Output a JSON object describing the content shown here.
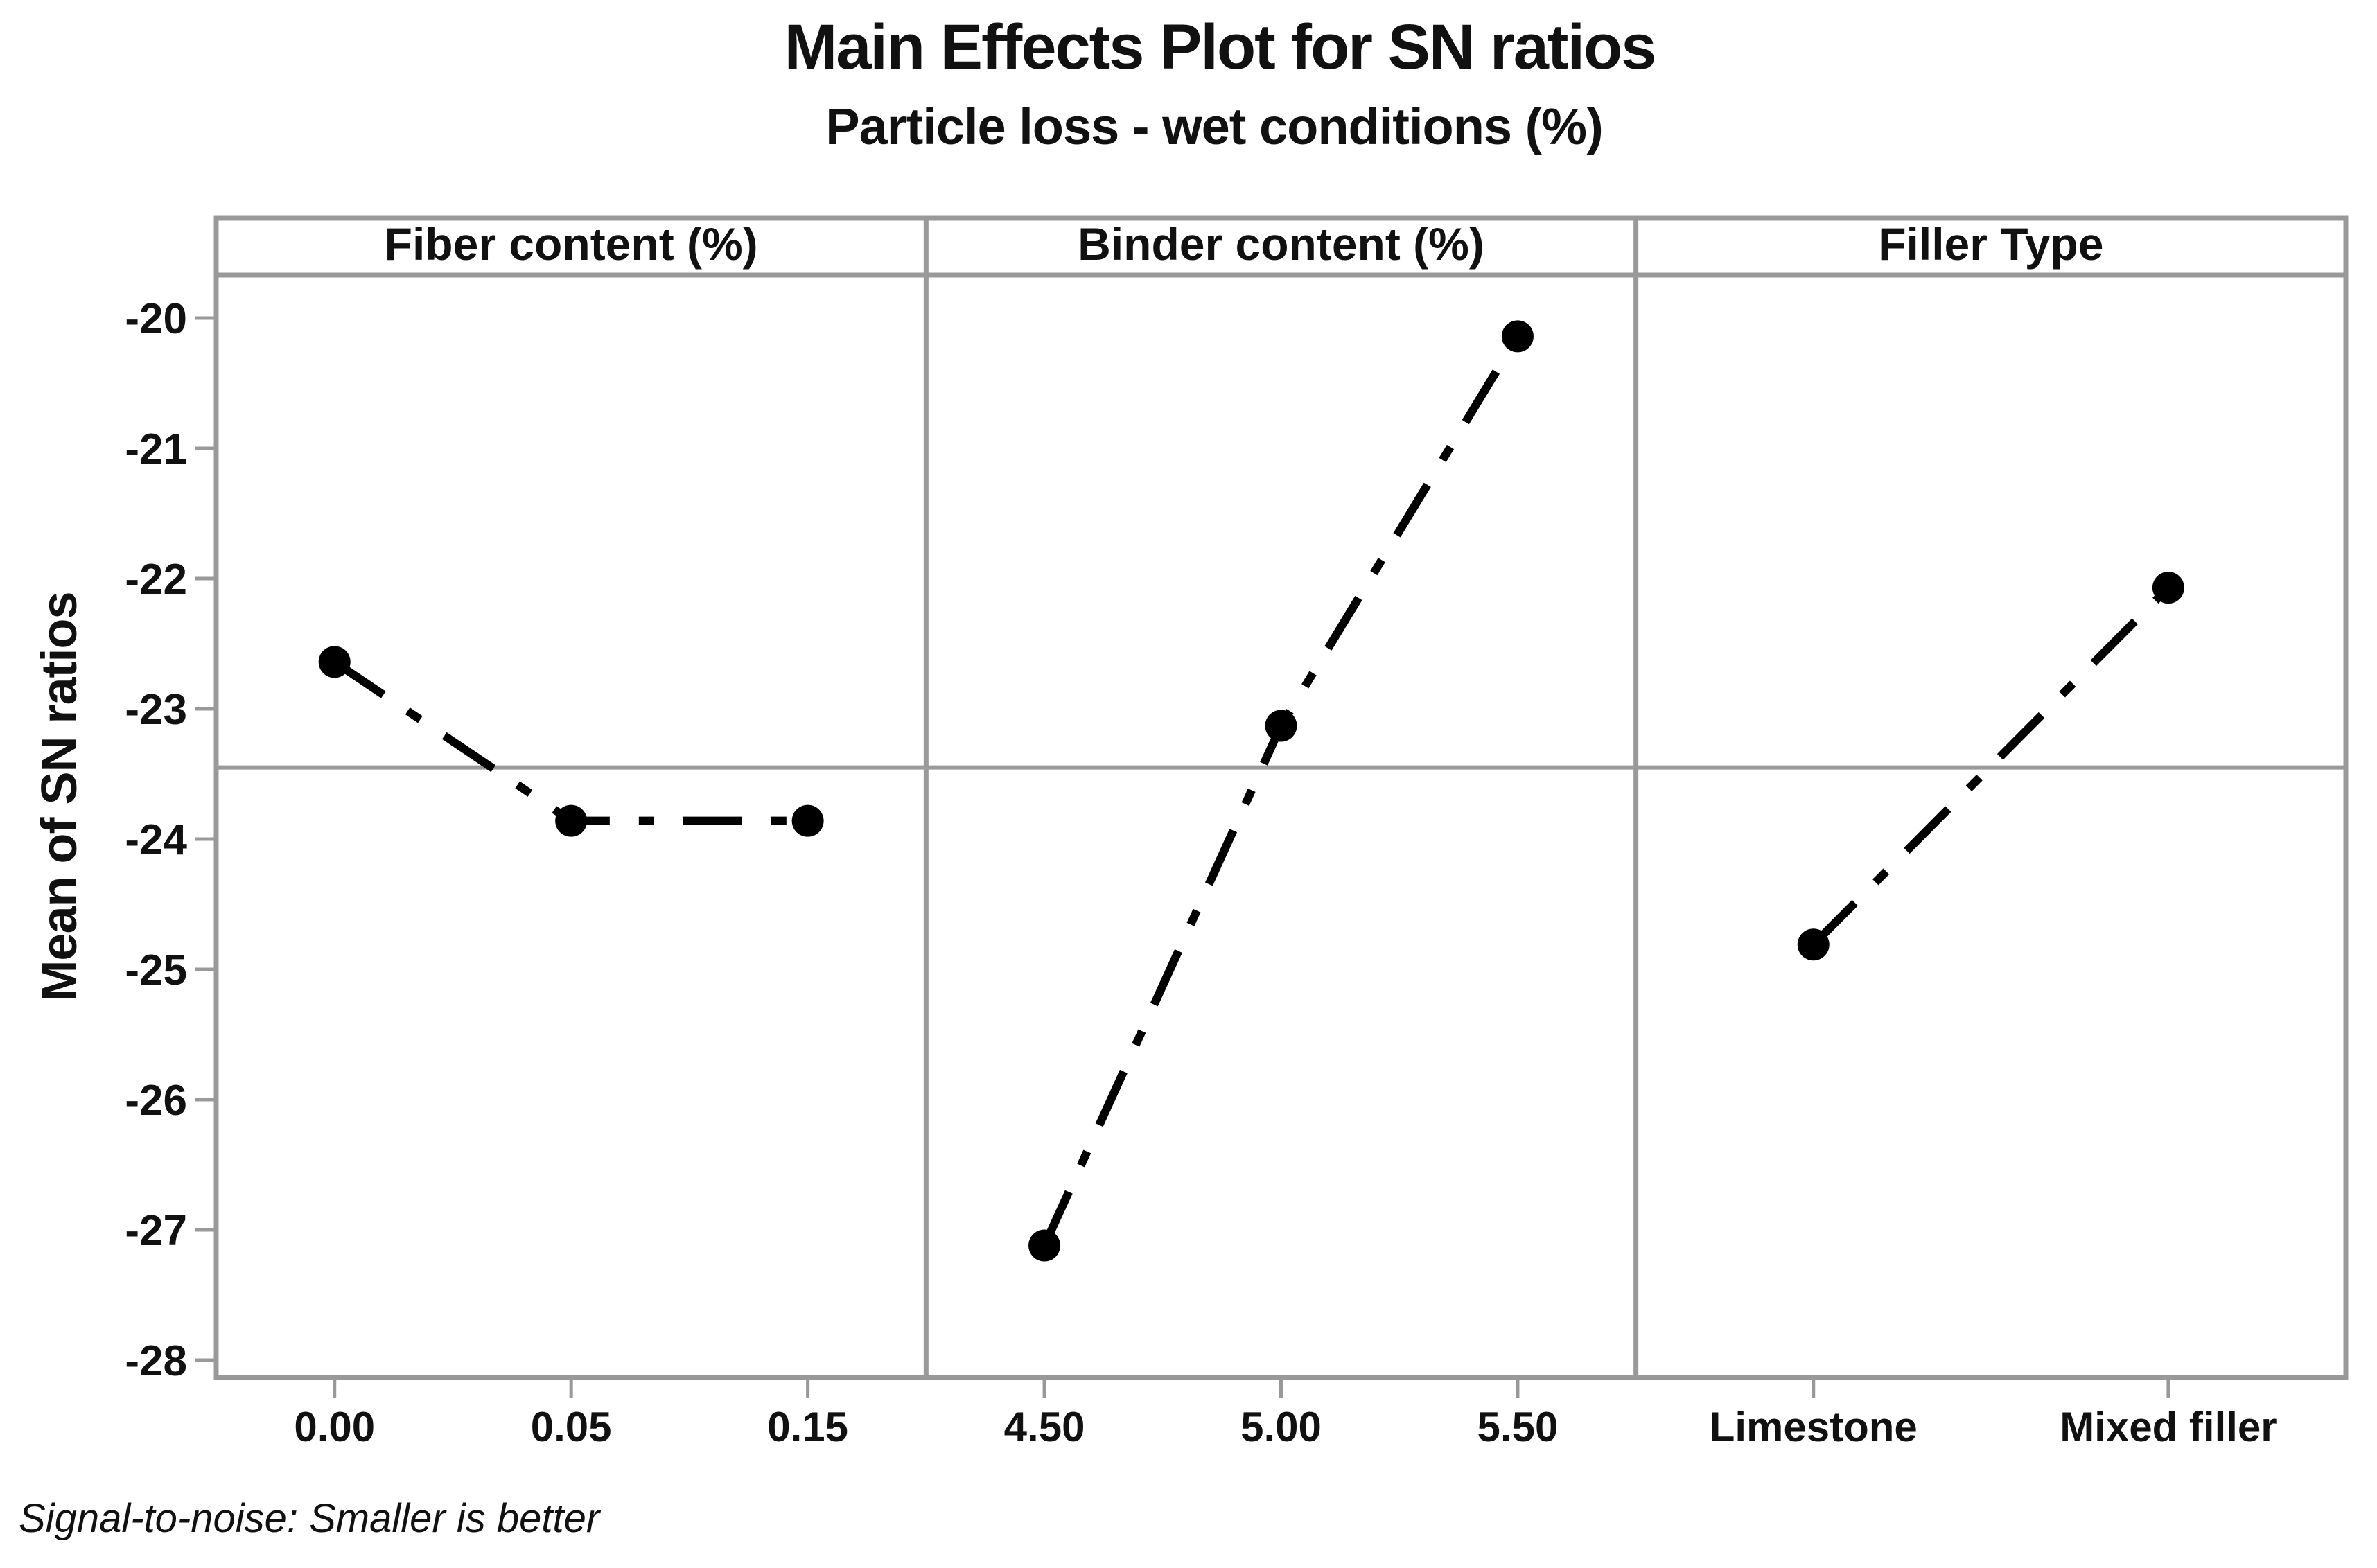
{
  "chart_data": {
    "type": "line",
    "variant": "main-effects-plot",
    "title": "Main Effects Plot for SN ratios",
    "subtitle": "Particle loss - wet conditions (%)",
    "ylabel": "Mean of SN ratios",
    "footnote": "Signal-to-noise: Smaller is better",
    "ylim": [
      -28.15,
      -19.67
    ],
    "y_ticks": [
      -20,
      -21,
      -22,
      -23,
      -24,
      -25,
      -26,
      -27,
      -28
    ],
    "y_tick_labels": [
      "-20",
      "-21",
      "-22",
      "-23",
      "-24",
      "-25",
      "-26",
      "-27",
      "-28"
    ],
    "grand_mean_line": -23.45,
    "grid": "off",
    "legend": "none",
    "line_style": "dash-dot",
    "marker": "filled-circle",
    "colors": {
      "data": "#000000",
      "frame": "#999999",
      "reference_line": "#9a9a9a",
      "text": "#111111",
      "background": "#ffffff"
    },
    "panels": [
      {
        "label": "Fiber content (%)",
        "categories": [
          "0.00",
          "0.05",
          "0.15"
        ],
        "values": [
          -22.64,
          -23.86,
          -23.86
        ]
      },
      {
        "label": "Binder content (%)",
        "categories": [
          "4.50",
          "5.00",
          "5.50"
        ],
        "values": [
          -27.12,
          -23.13,
          -20.14
        ]
      },
      {
        "label": "Filler Type",
        "categories": [
          "Limestone",
          "Mixed filler"
        ],
        "values": [
          -24.81,
          -22.07
        ]
      }
    ]
  }
}
